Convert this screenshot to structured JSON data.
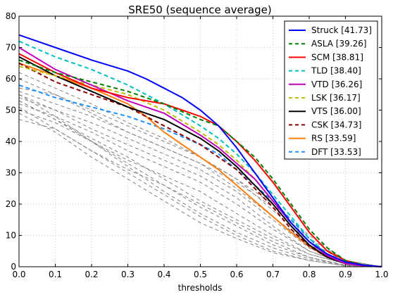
{
  "chart_data": {
    "type": "line",
    "title": "SRE50 (sequence average)",
    "xlabel": "thresholds",
    "ylabel": "",
    "xlim": [
      0,
      1
    ],
    "ylim": [
      0,
      80
    ],
    "xticks": [
      "0.0",
      "0.1",
      "0.2",
      "0.3",
      "0.4",
      "0.5",
      "0.6",
      "0.7",
      "0.8",
      "0.9",
      "1.0"
    ],
    "yticks": [
      "0",
      "10",
      "20",
      "30",
      "40",
      "50",
      "60",
      "70",
      "80"
    ],
    "grid": true,
    "legend_position": "top-right",
    "series": [
      {
        "name": "Struck [41.73]",
        "color": "#0000ff",
        "dash": "solid",
        "x": [
          0,
          0.05,
          0.1,
          0.2,
          0.3,
          0.35,
          0.4,
          0.45,
          0.5,
          0.55,
          0.6,
          0.65,
          0.7,
          0.75,
          0.8,
          0.85,
          0.9,
          0.95,
          1.0
        ],
        "y": [
          74,
          72,
          70,
          66,
          62.5,
          60,
          57,
          54,
          50,
          45,
          38,
          30,
          22,
          14,
          8,
          4,
          1.5,
          0.5,
          0
        ]
      },
      {
        "name": "ASLA [39.26]",
        "color": "#008000",
        "dash": "dashed",
        "x": [
          0,
          0.1,
          0.2,
          0.3,
          0.4,
          0.5,
          0.55,
          0.6,
          0.65,
          0.7,
          0.75,
          0.8,
          0.85,
          0.9,
          0.95,
          1.0
        ],
        "y": [
          66,
          62,
          59,
          56,
          52,
          47,
          45,
          40,
          35,
          28,
          20,
          12,
          6,
          2,
          0.5,
          0
        ]
      },
      {
        "name": "SCM [38.81]",
        "color": "#ff0000",
        "dash": "solid",
        "x": [
          0,
          0.1,
          0.2,
          0.3,
          0.4,
          0.5,
          0.55,
          0.6,
          0.65,
          0.7,
          0.75,
          0.8,
          0.85,
          0.9,
          0.95,
          1.0
        ],
        "y": [
          68,
          62,
          57,
          54,
          52,
          48,
          45,
          40,
          34,
          27,
          19,
          11,
          5,
          2,
          0.5,
          0
        ]
      },
      {
        "name": "TLD [38.40]",
        "color": "#00bfbf",
        "dash": "dashed",
        "x": [
          0,
          0.1,
          0.2,
          0.3,
          0.4,
          0.5,
          0.55,
          0.6,
          0.65,
          0.7,
          0.75,
          0.8,
          0.85,
          0.9,
          0.95,
          1.0
        ],
        "y": [
          72,
          67,
          63,
          58,
          52,
          45,
          41,
          36,
          30,
          23,
          16,
          9,
          4,
          1.5,
          0.5,
          0
        ]
      },
      {
        "name": "VTD [36.26]",
        "color": "#bf00bf",
        "dash": "solid",
        "x": [
          0,
          0.1,
          0.2,
          0.3,
          0.4,
          0.5,
          0.55,
          0.6,
          0.65,
          0.7,
          0.75,
          0.8,
          0.85,
          0.9,
          0.95,
          1.0
        ],
        "y": [
          70,
          63,
          58,
          53,
          49,
          42,
          38,
          33,
          28,
          21,
          14,
          8,
          3.5,
          1,
          0.3,
          0
        ]
      },
      {
        "name": "LSK [36.17]",
        "color": "#bfbf00",
        "dash": "dashed",
        "x": [
          0,
          0.1,
          0.2,
          0.3,
          0.4,
          0.5,
          0.55,
          0.6,
          0.65,
          0.7,
          0.75,
          0.8,
          0.85,
          0.9,
          0.95,
          1.0
        ],
        "y": [
          64,
          61,
          58,
          55,
          50,
          43,
          39,
          34,
          28,
          21,
          14,
          8,
          4,
          1.5,
          0.5,
          0
        ]
      },
      {
        "name": "VTS [36.00]",
        "color": "#000000",
        "dash": "solid",
        "x": [
          0,
          0.1,
          0.2,
          0.3,
          0.4,
          0.5,
          0.55,
          0.6,
          0.65,
          0.7,
          0.75,
          0.8,
          0.85,
          0.9,
          0.95,
          1.0
        ],
        "y": [
          67,
          61,
          56,
          51,
          47,
          41,
          37,
          32,
          26,
          20,
          13,
          7,
          3,
          1,
          0.3,
          0
        ]
      },
      {
        "name": "CSK [34.73]",
        "color": "#8b0000",
        "dash": "dashed",
        "x": [
          0,
          0.1,
          0.2,
          0.3,
          0.4,
          0.5,
          0.55,
          0.6,
          0.65,
          0.7,
          0.75,
          0.8,
          0.85,
          0.9,
          0.95,
          1.0
        ],
        "y": [
          65,
          59,
          55,
          51,
          45,
          39,
          35,
          31,
          25,
          19,
          12,
          6.5,
          3,
          1,
          0.3,
          0
        ]
      },
      {
        "name": "RS [33.59]",
        "color": "#ff7f0e",
        "dash": "solid",
        "x": [
          0,
          0.1,
          0.2,
          0.3,
          0.35,
          0.4,
          0.45,
          0.5,
          0.55,
          0.6,
          0.65,
          0.7,
          0.75,
          0.8,
          0.85,
          0.9,
          0.95,
          1.0
        ],
        "y": [
          65,
          61,
          57,
          52,
          48,
          43,
          39,
          35,
          31,
          26,
          21,
          16,
          11,
          6.5,
          3,
          1,
          0.3,
          0
        ]
      },
      {
        "name": "DFT [33.53]",
        "color": "#1e90ff",
        "dash": "dashed",
        "x": [
          0,
          0.1,
          0.2,
          0.3,
          0.4,
          0.5,
          0.55,
          0.6,
          0.65,
          0.7,
          0.75,
          0.8,
          0.85,
          0.9,
          0.95,
          1.0
        ],
        "y": [
          58,
          54,
          51,
          48,
          44,
          39,
          36,
          31,
          26,
          21,
          15,
          9,
          4,
          1.5,
          0.5,
          0
        ]
      }
    ],
    "background_series_color": "#808080",
    "background_series": [
      {
        "x": [
          0,
          0.1,
          0.2,
          0.3,
          0.4,
          0.5,
          0.6,
          0.7,
          0.8,
          0.9,
          1.0
        ],
        "y": [
          57,
          55,
          50,
          45,
          40,
          35,
          28,
          18,
          8,
          1.5,
          0
        ]
      },
      {
        "x": [
          0,
          0.1,
          0.2,
          0.3,
          0.4,
          0.5,
          0.6,
          0.7,
          0.8,
          0.9,
          1.0
        ],
        "y": [
          56,
          52,
          48,
          43,
          38,
          33,
          25,
          16,
          7,
          1.5,
          0
        ]
      },
      {
        "x": [
          0,
          0.1,
          0.2,
          0.3,
          0.4,
          0.5,
          0.6,
          0.7,
          0.8,
          0.9,
          1.0
        ],
        "y": [
          55,
          50,
          46,
          41,
          36,
          31,
          24,
          15,
          6,
          1,
          0
        ]
      },
      {
        "x": [
          0,
          0.1,
          0.2,
          0.3,
          0.4,
          0.5,
          0.6,
          0.7,
          0.8,
          0.9,
          1.0
        ],
        "y": [
          54,
          50,
          44,
          39,
          34,
          29,
          22,
          13,
          5,
          1,
          0
        ]
      },
      {
        "x": [
          0,
          0.1,
          0.2,
          0.3,
          0.4,
          0.5,
          0.6,
          0.7,
          0.8,
          0.9,
          1.0
        ],
        "y": [
          52,
          48,
          43,
          37,
          32,
          27,
          20,
          12,
          5,
          1,
          0
        ]
      },
      {
        "x": [
          0,
          0.1,
          0.2,
          0.3,
          0.4,
          0.5,
          0.6,
          0.7,
          0.8,
          0.9,
          1.0
        ],
        "y": [
          50,
          46,
          40,
          34,
          29,
          24,
          17,
          10,
          4,
          1,
          0
        ]
      },
      {
        "x": [
          0,
          0.1,
          0.2,
          0.3,
          0.4,
          0.5,
          0.6,
          0.7,
          0.8,
          0.9,
          1.0
        ],
        "y": [
          47,
          44,
          37,
          31,
          26,
          20,
          14,
          8,
          3,
          0.5,
          0
        ]
      },
      {
        "x": [
          0,
          0.1,
          0.2,
          0.3,
          0.4,
          0.5,
          0.6,
          0.7,
          0.8,
          0.9,
          1.0
        ],
        "y": [
          53,
          47,
          40,
          33,
          26,
          19,
          13,
          7,
          3,
          0.5,
          0
        ]
      },
      {
        "x": [
          0,
          0.1,
          0.2,
          0.3,
          0.4,
          0.5,
          0.6,
          0.7,
          0.8,
          0.9,
          1.0
        ],
        "y": [
          55,
          48,
          40,
          32,
          24,
          17,
          11,
          6,
          2.5,
          0.5,
          0
        ]
      },
      {
        "x": [
          0,
          0.1,
          0.2,
          0.3,
          0.4,
          0.5,
          0.6,
          0.7,
          0.8,
          0.9,
          1.0
        ],
        "y": [
          51,
          44,
          37,
          30,
          23,
          16,
          10,
          5,
          2,
          0.3,
          0
        ]
      },
      {
        "x": [
          0,
          0.1,
          0.2,
          0.3,
          0.4,
          0.5,
          0.6,
          0.7,
          0.8,
          0.9,
          1.0
        ],
        "y": [
          49,
          43,
          35,
          28,
          21,
          14,
          9,
          4.5,
          2,
          0.3,
          0
        ]
      },
      {
        "x": [
          0,
          0.1,
          0.2,
          0.3,
          0.4,
          0.5,
          0.6,
          0.7,
          0.8,
          0.9,
          1.0
        ],
        "y": [
          53,
          47,
          41,
          35,
          28,
          21,
          15,
          9,
          4,
          1,
          0
        ]
      },
      {
        "x": [
          0,
          0.1,
          0.2,
          0.3,
          0.4,
          0.5,
          0.6,
          0.7,
          0.8,
          0.9,
          1.0
        ],
        "y": [
          60,
          55,
          49,
          43,
          38,
          33,
          27,
          19,
          9,
          2,
          0
        ]
      },
      {
        "x": [
          0,
          0.1,
          0.2,
          0.3,
          0.4,
          0.5,
          0.6,
          0.7,
          0.8,
          0.9,
          1.0
        ],
        "y": [
          62,
          57,
          52,
          46,
          41,
          35,
          28,
          20,
          10,
          2,
          0
        ]
      }
    ]
  }
}
